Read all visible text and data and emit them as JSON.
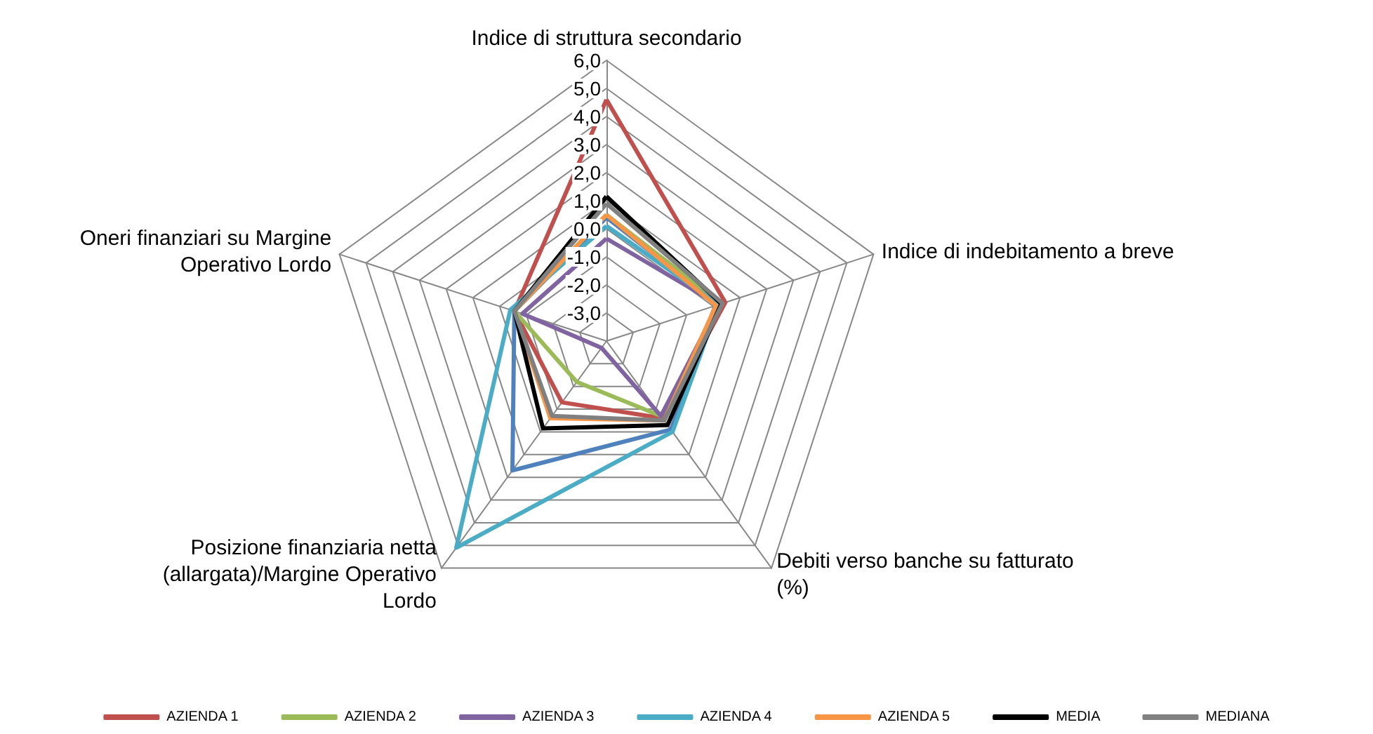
{
  "chart_data": {
    "type": "radar",
    "categories": [
      "Indice di struttura secondario",
      "Indice di indebitamento a breve",
      "Debiti verso banche su fatturato (%)",
      "Posizione finanziaria netta (allargata)/Margine Operativo Lordo",
      "Oneri finanziari su Margine Operativo Lordo"
    ],
    "ylim": [
      -4,
      6
    ],
    "yticks": [
      {
        "value": -3,
        "label": "-3,0"
      },
      {
        "value": -2,
        "label": "-2,0"
      },
      {
        "value": -1,
        "label": "-1,0"
      },
      {
        "value": 0,
        "label": "0,0"
      },
      {
        "value": 1,
        "label": "1,0"
      },
      {
        "value": 2,
        "label": "2,0"
      },
      {
        "value": 3,
        "label": "3,0"
      },
      {
        "value": 4,
        "label": "4,0"
      },
      {
        "value": 5,
        "label": "5,0"
      },
      {
        "value": 6,
        "label": "6,0"
      }
    ],
    "grid": true,
    "legend": "bottom",
    "marker": "none",
    "series": [
      {
        "color": "#4f81bd",
        "values": [
          0.4,
          0.2,
          -0.1,
          1.7,
          -0.55
        ]
      },
      {
        "name": "AZIENDA 1",
        "color": "#c0504d",
        "values": [
          4.6,
          0.45,
          -0.6,
          -1.3,
          -0.55
        ]
      },
      {
        "name": "AZIENDA 2",
        "color": "#9bbb59",
        "values": [
          0.5,
          0.3,
          -0.7,
          -2.2,
          -0.55
        ]
      },
      {
        "name": "AZIENDA 3",
        "color": "#8064a2",
        "values": [
          -0.35,
          0.2,
          -0.7,
          -3.7,
          -0.85
        ]
      },
      {
        "name": "AZIENDA 4",
        "color": "#4bacc6",
        "values": [
          0.1,
          0.2,
          0.0,
          5.1,
          -0.4
        ]
      },
      {
        "name": "AZIENDA 5",
        "color": "#f79646",
        "values": [
          0.5,
          0.1,
          -0.5,
          -0.6,
          -0.55
        ]
      },
      {
        "name": "MEDIA",
        "color": "#000000",
        "values": [
          1.15,
          0.3,
          -0.3,
          -0.15,
          -0.55
        ]
      },
      {
        "name": "MEDIANA",
        "color": "#808080",
        "values": [
          0.9,
          0.35,
          -0.5,
          -0.7,
          -0.55
        ]
      }
    ]
  }
}
